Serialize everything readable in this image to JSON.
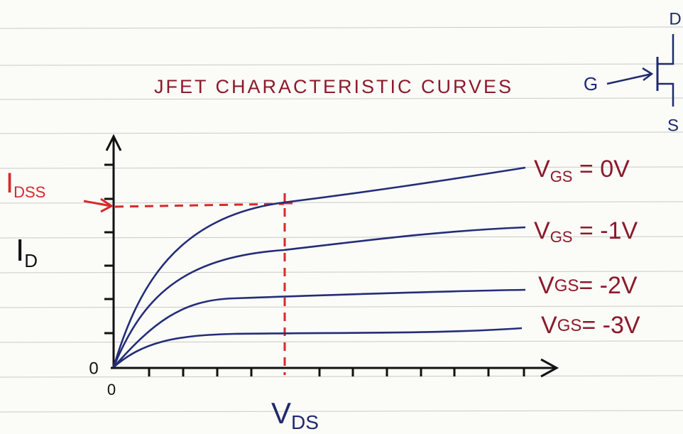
{
  "title": "JFET CHARACTERISTIC CURVES",
  "y_label": {
    "main": "I",
    "sub": "D"
  },
  "x_label": {
    "main": "V",
    "sub": "DS"
  },
  "idss_label": {
    "main": "I",
    "sub": "DSS"
  },
  "origin_y": "0",
  "origin_x": "0",
  "curves": [
    {
      "main": "V",
      "sub": "GS",
      "rest": " = 0V"
    },
    {
      "main": "V",
      "sub": "GS",
      "rest": " = -1V"
    },
    {
      "main": "V",
      "sub": "GS",
      "rest": "= -2V"
    },
    {
      "main": "V",
      "sub": "GS",
      "rest": "= -3V"
    }
  ],
  "symbol": {
    "gate": "G",
    "drain": "D",
    "source": "S"
  }
}
